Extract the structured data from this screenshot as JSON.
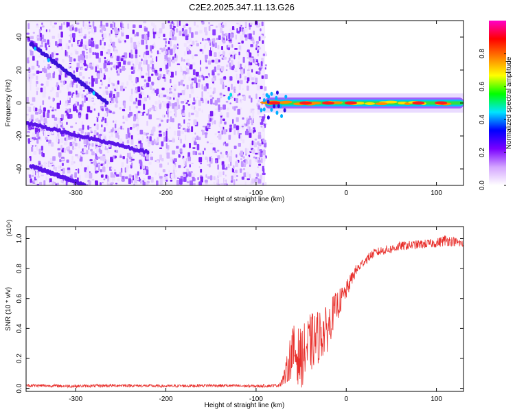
{
  "title": "C2E2.2025.347.11.13.G26",
  "chart_data": [
    {
      "type": "heatmap",
      "name": "spectrogram",
      "xlabel": "Height of straight line (km)",
      "ylabel": "Frequency (Hz)",
      "xlim": [
        -355,
        130
      ],
      "ylim": [
        -50,
        50
      ],
      "xticks": [
        -300,
        -200,
        -100,
        0,
        100
      ],
      "yticks": [
        40,
        20,
        0,
        -20,
        -40
      ],
      "noise_region_x": [
        -355,
        -90
      ],
      "dispersed_tracks": [
        {
          "x": [
            -350,
            -265
          ],
          "y": [
            36,
            0
          ]
        },
        {
          "x": [
            -355,
            -220
          ],
          "y": [
            -12,
            -30
          ]
        },
        {
          "x": [
            -350,
            -290
          ],
          "y": [
            -38,
            -50
          ]
        }
      ],
      "carrier_line": {
        "x": [
          -90,
          130
        ],
        "y": 0
      },
      "carrier_hotspots_x": [
        -80,
        -45,
        -20,
        5,
        80,
        105
      ],
      "colorbar": {
        "label": "Normalized spectral amplitude",
        "range": [
          0,
          1
        ],
        "ticks": [
          0.0,
          0.2,
          0.4,
          0.6,
          0.8
        ],
        "tick_labels": [
          "0.0",
          "0.2",
          "0.4",
          "0.6",
          "0.8"
        ],
        "colors": [
          "#ffffff",
          "#d4a6ff",
          "#7a00ff",
          "#0000ff",
          "#00e5ff",
          "#00ff00",
          "#ffff00",
          "#ff7f00",
          "#ff0000",
          "#ff00c8"
        ]
      }
    },
    {
      "type": "line",
      "name": "snr",
      "xlabel": "Height of straight line (km)",
      "ylabel": "SNR (10 * v/v)",
      "scale_label": "(x10⁴)",
      "xlim": [
        -355,
        130
      ],
      "ylim": [
        -0.02,
        1.08
      ],
      "xticks": [
        -300,
        -200,
        -100,
        0,
        100
      ],
      "yticks": [
        0.0,
        0.2,
        0.4,
        0.6,
        0.8,
        1.0
      ],
      "ytick_labels": [
        "0.0",
        "0.2",
        "0.4",
        "0.6",
        "0.8",
        "1.0"
      ],
      "color": "#e8302c",
      "series": [
        {
          "name": "SNR",
          "x": [
            -355,
            -300,
            -250,
            -200,
            -150,
            -100,
            -75,
            -68,
            -60,
            -50,
            -40,
            -30,
            -20,
            -15,
            -10,
            -5,
            0,
            5,
            10,
            20,
            30,
            40,
            50,
            60,
            80,
            100,
            110,
            120,
            130
          ],
          "y": [
            0.02,
            0.015,
            0.02,
            0.015,
            0.02,
            0.015,
            0.02,
            0.08,
            0.25,
            0.2,
            0.3,
            0.35,
            0.4,
            0.5,
            0.55,
            0.6,
            0.65,
            0.72,
            0.78,
            0.85,
            0.9,
            0.92,
            0.93,
            0.95,
            0.96,
            0.97,
            0.99,
            0.98,
            0.96
          ],
          "noise": [
            0.01,
            0.01,
            0.01,
            0.01,
            0.01,
            0.01,
            0.01,
            0.06,
            0.18,
            0.2,
            0.2,
            0.18,
            0.15,
            0.12,
            0.1,
            0.08,
            0.06,
            0.05,
            0.04,
            0.03,
            0.03,
            0.03,
            0.03,
            0.03,
            0.03,
            0.03,
            0.04,
            0.03,
            0.03
          ]
        }
      ]
    }
  ]
}
